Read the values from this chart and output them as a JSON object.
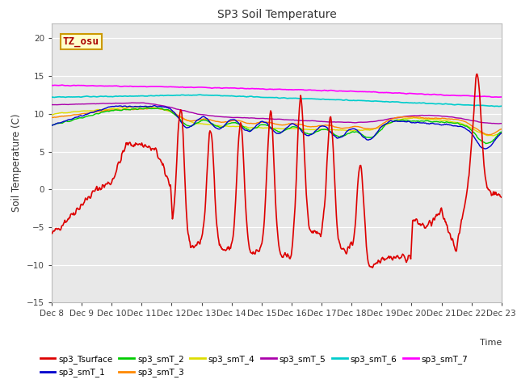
{
  "title": "SP3 Soil Temperature",
  "ylabel": "Soil Temperature (C)",
  "xlabel": "Time",
  "ylim": [
    -15,
    22
  ],
  "yticks": [
    -15,
    -10,
    -5,
    0,
    5,
    10,
    15,
    20
  ],
  "fig_bg": "#ffffff",
  "plot_bg": "#e8e8e8",
  "annotation": "TZ_osu",
  "annotation_color": "#aa0000",
  "annotation_bg": "#ffffcc",
  "annotation_border": "#cc9900",
  "series_colors": {
    "sp3_Tsurface": "#dd0000",
    "sp3_smT_1": "#0000cc",
    "sp3_smT_2": "#00cc00",
    "sp3_smT_3": "#ff8800",
    "sp3_smT_4": "#dddd00",
    "sp3_smT_5": "#aa00aa",
    "sp3_smT_6": "#00cccc",
    "sp3_smT_7": "#ff00ff"
  },
  "n_points": 720,
  "xticklabels": [
    "Dec 8",
    "Dec 9",
    "Dec 10",
    "Dec 11",
    "Dec 12",
    "Dec 13",
    "Dec 14",
    "Dec 15",
    "Dec 16",
    "Dec 17",
    "Dec 18",
    "Dec 19",
    "Dec 20",
    "Dec 21",
    "Dec 22",
    "Dec 23"
  ]
}
